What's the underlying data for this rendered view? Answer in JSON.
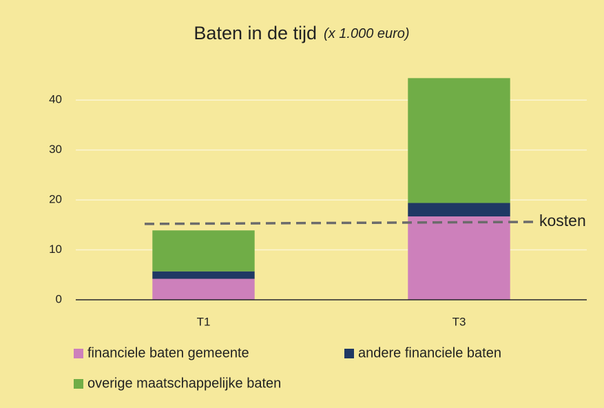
{
  "chart_data": {
    "type": "stacked_bar",
    "title": "Baten in de tijd",
    "subtitle": "(x 1.000 euro)",
    "categories": [
      "T1",
      "T3"
    ],
    "series": [
      {
        "name": "financiele baten gemeente",
        "color": "#cd80bb",
        "values": [
          4.2,
          16.7
        ]
      },
      {
        "name": "andere financiele baten",
        "color": "#1f3864",
        "values": [
          1.5,
          2.7
        ]
      },
      {
        "name": "overige maatschappelijke baten",
        "color": "#70ad47",
        "values": [
          8.2,
          25.0
        ]
      }
    ],
    "cost_line": {
      "label": "kosten",
      "color": "#6b6b6b",
      "values": [
        15.2,
        15.6
      ]
    },
    "ylim": [
      0,
      45
    ],
    "yticks": [
      0,
      10,
      20,
      30,
      40
    ],
    "grid": true,
    "legend": "bottom"
  }
}
